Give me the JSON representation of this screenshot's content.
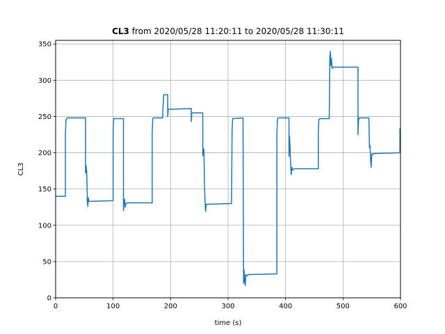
{
  "chart_data": {
    "type": "line",
    "title": {
      "bold": "CL3",
      "rest": " from 2020/05/28 11:20:11 to 2020/05/28 11:30:11"
    },
    "xlabel": "time (s)",
    "ylabel": "CL3",
    "xlim": [
      0,
      600
    ],
    "ylim": [
      0,
      355
    ],
    "xticks": [
      0,
      100,
      200,
      300,
      400,
      500,
      600
    ],
    "yticks": [
      0,
      50,
      100,
      150,
      200,
      250,
      300,
      350
    ],
    "grid": true,
    "line_color": "#1f77b4",
    "series": [
      {
        "x": [
          0,
          17,
          17,
          18,
          20,
          52,
          52,
          53,
          54,
          55,
          55,
          56,
          57,
          58,
          60,
          100,
          100,
          101,
          102,
          118,
          118,
          119,
          120,
          121,
          122,
          123,
          125,
          168,
          168,
          169,
          170,
          186,
          187,
          188,
          189,
          195,
          195,
          196,
          200,
          236,
          236,
          237,
          238,
          256,
          256,
          257,
          258,
          259,
          260,
          261,
          262,
          265,
          306,
          306,
          307,
          308,
          325,
          326,
          327,
          328,
          329,
          330,
          331,
          332,
          335,
          385,
          385,
          386,
          387,
          406,
          406,
          407,
          408,
          409,
          410,
          411,
          412,
          415,
          457,
          457,
          458,
          460,
          476,
          477,
          478,
          479,
          480,
          481,
          482,
          485,
          526,
          526,
          527,
          528,
          545,
          546,
          547,
          548,
          549,
          550,
          551,
          552,
          555,
          599,
          599,
          600
        ],
        "y": [
          140,
          140,
          225,
          245,
          248,
          248,
          172,
          182,
          175,
          145,
          134,
          126,
          138,
          133,
          133,
          134,
          228,
          247,
          247,
          247,
          120,
          133,
          136,
          125,
          130,
          130,
          131,
          131,
          228,
          247,
          248,
          248,
          265,
          280,
          280,
          280,
          250,
          260,
          260,
          261,
          243,
          255,
          255,
          255,
          196,
          205,
          205,
          155,
          133,
          119,
          129,
          129,
          130,
          130,
          230,
          247,
          248,
          248,
          20,
          38,
          22,
          17,
          32,
          30,
          32,
          33,
          228,
          247,
          248,
          248,
          195,
          223,
          205,
          180,
          170,
          180,
          176,
          178,
          178,
          228,
          246,
          247,
          247,
          330,
          340,
          320,
          330,
          316,
          318,
          318,
          318,
          225,
          245,
          248,
          248,
          207,
          210,
          190,
          180,
          198,
          197,
          199,
          199,
          200,
          233,
          233
        ]
      }
    ]
  }
}
